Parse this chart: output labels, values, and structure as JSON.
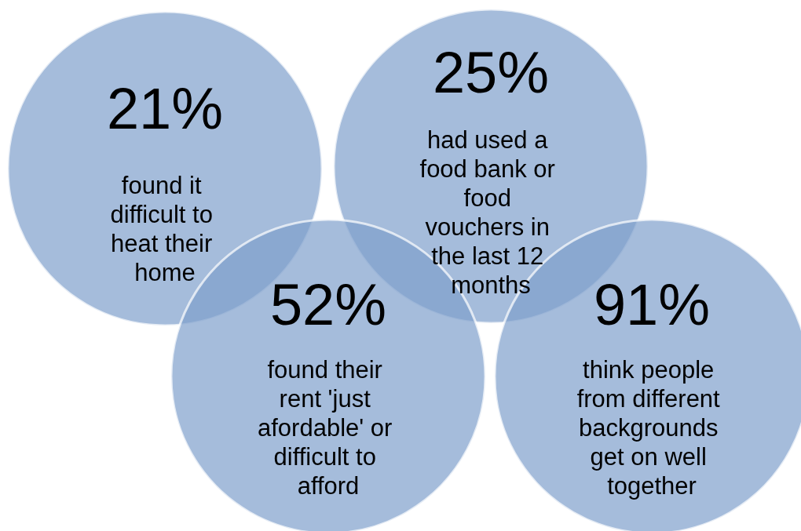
{
  "chart_data": {
    "type": "other",
    "categories": [
      "found it difficult to heat their home",
      "had used a food bank or food vouchers in the last 12 months",
      "found their rent 'just afordable' or difficult to afford",
      "think people from different backgrounds get on well together"
    ],
    "values": [
      21,
      25,
      52,
      91
    ],
    "value_labels": [
      "21%",
      "25%",
      "52%",
      "91%"
    ],
    "color": "#7f9fcc"
  }
}
